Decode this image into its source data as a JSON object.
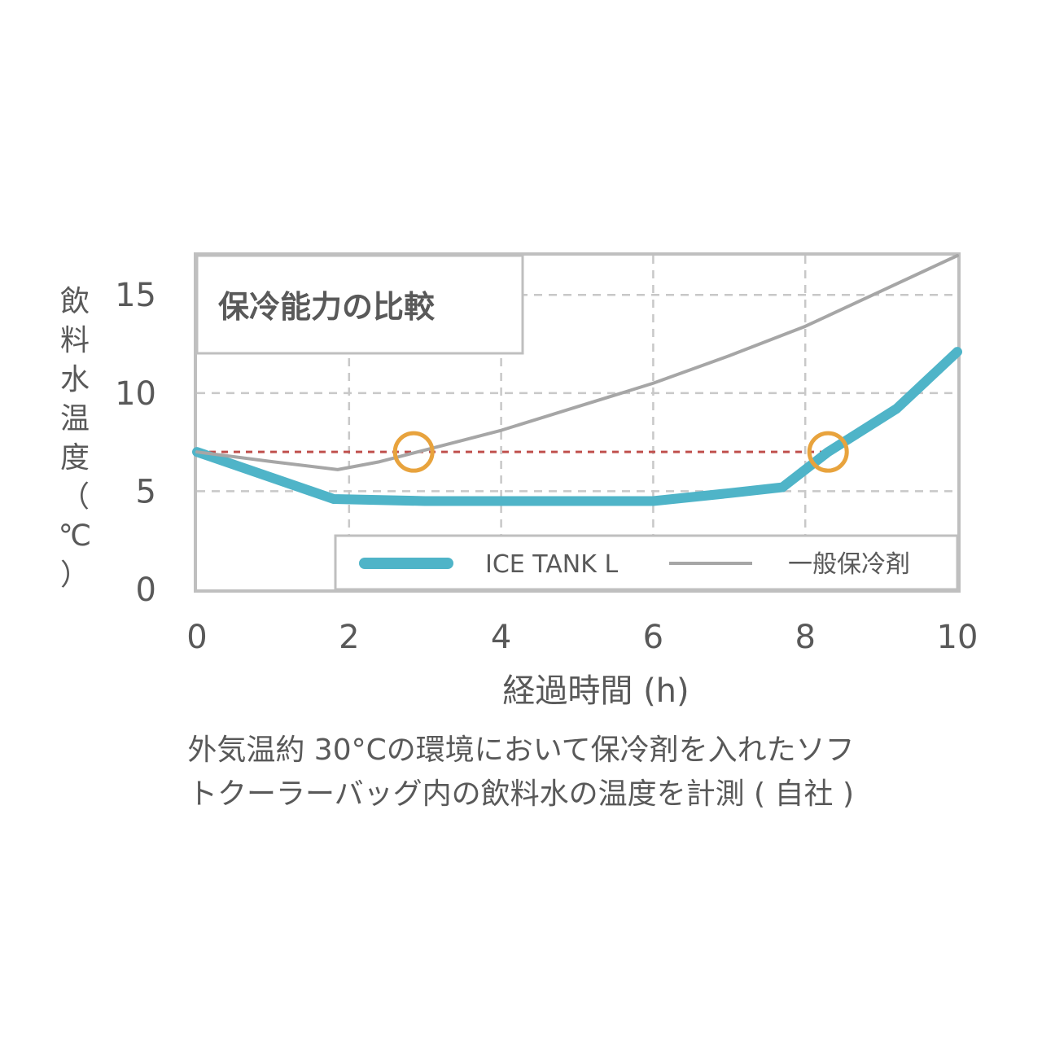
{
  "chart_data": {
    "type": "line",
    "title": "保冷能力の比較",
    "xlabel": "経過時間 (h)",
    "ylabel": "飲料水温度（℃）",
    "xlim": [
      0,
      10
    ],
    "ylim": [
      0,
      17
    ],
    "xticks": [
      0,
      2,
      4,
      6,
      8,
      10
    ],
    "yticks": [
      0,
      5,
      10,
      15
    ],
    "grid": true,
    "legend_position": "bottom-right",
    "series": [
      {
        "name": "ICE TANK L",
        "color": "#4fb4c8",
        "x": [
          0,
          1.8,
          3,
          4,
          5,
          6,
          7,
          7.7,
          8.3,
          9.2,
          10
        ],
        "y": [
          7,
          4.6,
          4.5,
          4.5,
          4.5,
          4.5,
          4.9,
          5.2,
          7,
          9.2,
          12.1
        ]
      },
      {
        "name": "一般保冷剤",
        "color": "#a6a6a6",
        "x": [
          0,
          1,
          1.85,
          2.4,
          3,
          4,
          5,
          6,
          7,
          8,
          9,
          10
        ],
        "y": [
          7,
          6.5,
          6.1,
          6.5,
          7.1,
          8.1,
          9.3,
          10.5,
          11.9,
          13.4,
          15.2,
          17
        ]
      }
    ],
    "reference_line": {
      "y": 7,
      "color": "#c0504d",
      "style": "dashed"
    },
    "markers": [
      {
        "x": 2.85,
        "y": 7,
        "color": "#e8a33d"
      },
      {
        "x": 8.3,
        "y": 7,
        "color": "#e8a33d"
      }
    ]
  },
  "caption": {
    "line1": "外気温約 30°Cの環境において保冷剤を入れたソフ",
    "line2": "トクーラーバッグ内の飲料水の温度を計測 ( 自社 )"
  }
}
